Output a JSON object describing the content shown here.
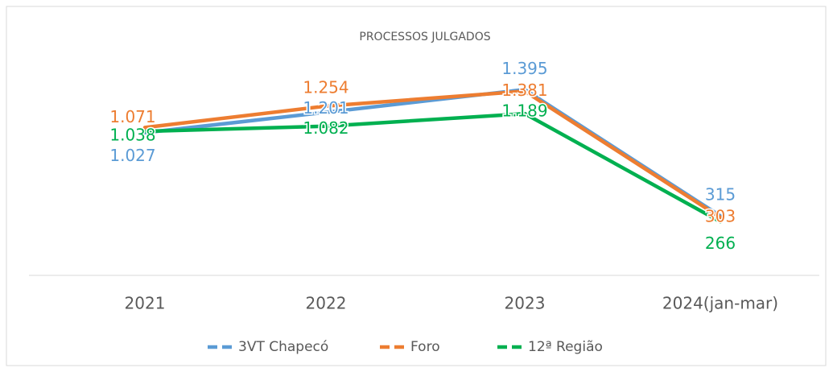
{
  "chart_data": {
    "type": "line",
    "title": "PROCESSOS JULGADOS",
    "categories": [
      "2021",
      "2022",
      "2023",
      "2024(jan-mar)"
    ],
    "ylim": [
      0,
      1500
    ],
    "series": [
      {
        "name": "3VT Chapecó",
        "color": "#5b9bd5",
        "values": [
          1027,
          1201,
          1395,
          315
        ],
        "value_labels": [
          "1.027",
          "1.201",
          "1.395",
          "315"
        ]
      },
      {
        "name": "Foro",
        "color": "#ed7d31",
        "values": [
          1071,
          1254,
          1381,
          303
        ],
        "value_labels": [
          "1.071",
          "1.254",
          "1.381",
          "303"
        ]
      },
      {
        "name": "12ª Região",
        "color": "#00b050",
        "values": [
          1038,
          1082,
          1189,
          266
        ],
        "value_labels": [
          "1.038",
          "1.082",
          "1.189",
          "266"
        ]
      }
    ]
  }
}
